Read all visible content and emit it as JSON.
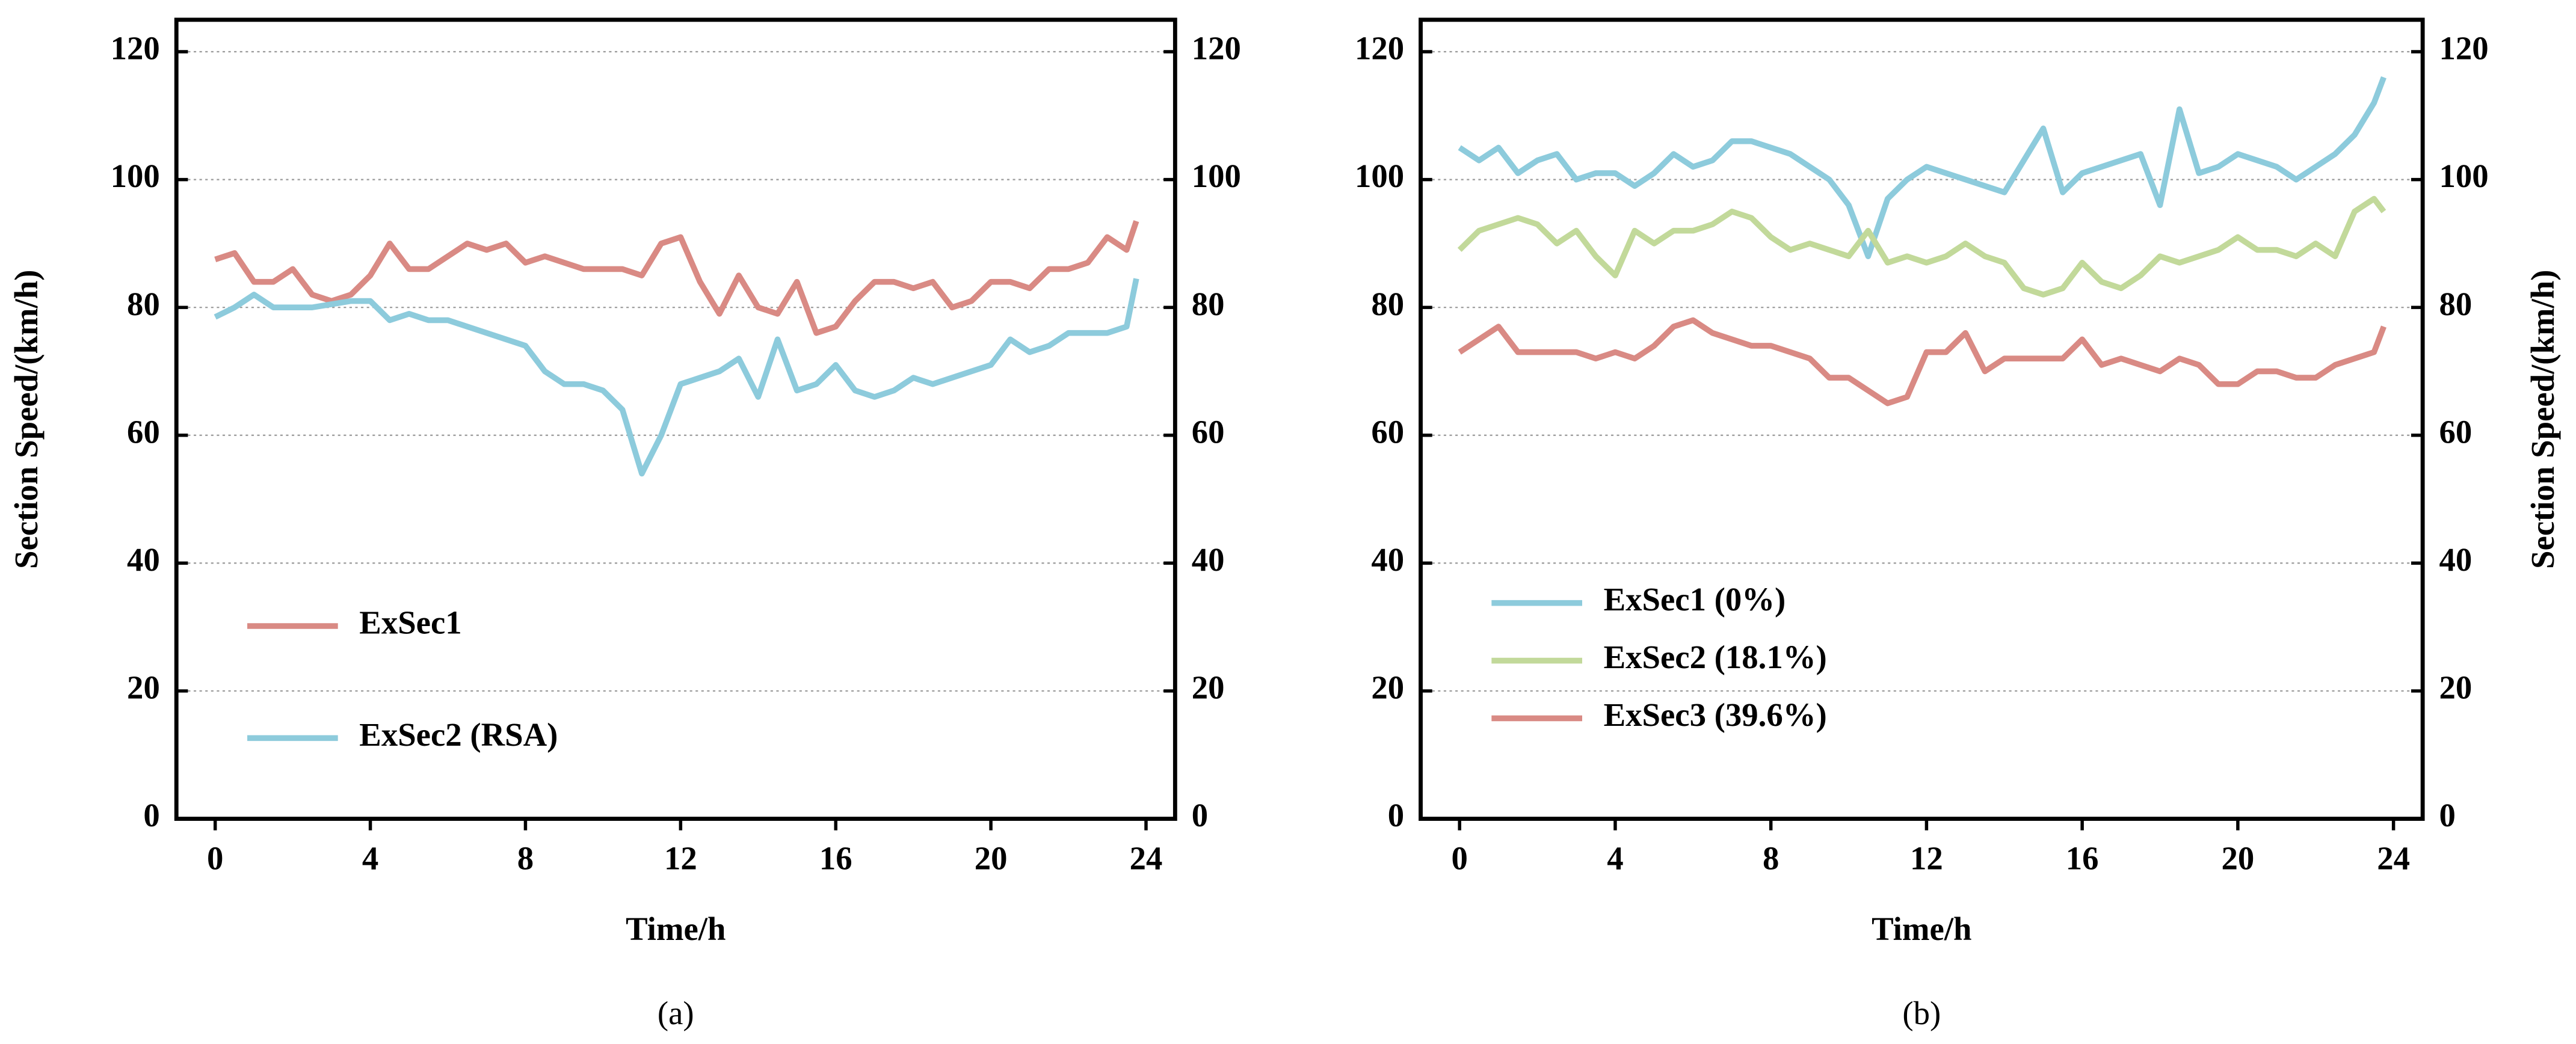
{
  "chart_data": [
    {
      "type": "line",
      "caption": "(a)",
      "xlabel": "Time/h",
      "ylabel": "Section Speed/(km/h)",
      "x": [
        0,
        0.5,
        1,
        1.5,
        2,
        2.5,
        3,
        3.5,
        4,
        4.5,
        5,
        5.5,
        6,
        6.5,
        7,
        7.5,
        8,
        8.5,
        9,
        9.5,
        10,
        10.5,
        11,
        11.5,
        12,
        12.5,
        13,
        13.5,
        14,
        14.5,
        15,
        15.5,
        16,
        16.5,
        17,
        17.5,
        18,
        18.5,
        19,
        19.5,
        20,
        20.5,
        21,
        21.5,
        22,
        22.5,
        23,
        23.5,
        23.75
      ],
      "series": [
        {
          "name": "ExSec1",
          "color": "#d98a84",
          "values": [
            87.5,
            88.5,
            84,
            84,
            86,
            82,
            81,
            82,
            85,
            90,
            86,
            86,
            88,
            90,
            89,
            90,
            87,
            88,
            87,
            86,
            86,
            86,
            85,
            90,
            91,
            84,
            79,
            85,
            80,
            79,
            84,
            76,
            77,
            81,
            84,
            84,
            83,
            84,
            80,
            81,
            84,
            84,
            83,
            86,
            86,
            87,
            91,
            89,
            93.5
          ]
        },
        {
          "name": "ExSec2 (RSA)",
          "color": "#8dcbdc",
          "values": [
            78.5,
            80,
            82,
            80,
            80,
            80,
            80.5,
            81,
            81,
            78,
            79,
            78,
            78,
            77,
            76,
            75,
            74,
            70,
            68,
            68,
            67,
            64,
            54,
            60,
            68,
            69,
            70,
            72,
            66,
            75,
            67,
            68,
            71,
            67,
            66,
            67,
            69,
            68,
            69,
            70,
            71,
            75,
            73,
            74,
            76,
            76,
            76,
            77,
            84.5
          ]
        }
      ],
      "xlim": [
        -1,
        24.75
      ],
      "xticks": [
        0,
        4,
        8,
        12,
        16,
        20,
        24
      ],
      "ylim": [
        0,
        125
      ],
      "yticks": [
        0,
        20,
        40,
        60,
        80,
        100,
        120
      ],
      "y2lim": [
        0,
        125
      ],
      "y2ticks": [
        0,
        20,
        40,
        60,
        80,
        100,
        120
      ],
      "grid": true,
      "legend": "lower left"
    },
    {
      "type": "line",
      "caption": "(b)",
      "xlabel": "Time/h",
      "y2label": "Section Speed/(km/h)",
      "x": [
        0,
        0.5,
        1,
        1.5,
        2,
        2.5,
        3,
        3.5,
        4,
        4.5,
        5,
        5.5,
        6,
        6.5,
        7,
        7.5,
        8,
        8.5,
        9,
        9.5,
        10,
        10.5,
        11,
        11.5,
        12,
        12.5,
        13,
        13.5,
        14,
        14.5,
        15,
        15.5,
        16,
        16.5,
        17,
        17.5,
        18,
        18.5,
        19,
        19.5,
        20,
        20.5,
        21,
        21.5,
        22,
        22.5,
        23,
        23.5,
        23.75
      ],
      "series": [
        {
          "name": "ExSec1 (0%)",
          "color": "#8dcbdc",
          "values": [
            105,
            103,
            105,
            101,
            103,
            104,
            100,
            101,
            101,
            99,
            101,
            104,
            102,
            103,
            106,
            106,
            105,
            104,
            102,
            100,
            96,
            88,
            97,
            100,
            102,
            101,
            100,
            99,
            98,
            103,
            108,
            98,
            101,
            102,
            103,
            104,
            96,
            111,
            101,
            102,
            104,
            103,
            102,
            100,
            102,
            104,
            107,
            112,
            116
          ]
        },
        {
          "name": "ExSec2 (18.1%)",
          "color": "#c2d99a",
          "values": [
            89,
            92,
            93,
            94,
            93,
            90,
            92,
            88,
            85,
            92,
            90,
            92,
            92,
            93,
            95,
            94,
            91,
            89,
            90,
            89,
            88,
            92,
            87,
            88,
            87,
            88,
            90,
            88,
            87,
            83,
            82,
            83,
            87,
            84,
            83,
            85,
            88,
            87,
            88,
            89,
            91,
            89,
            89,
            88,
            90,
            88,
            95,
            97,
            95
          ]
        },
        {
          "name": "ExSec3 (39.6%)",
          "color": "#d98a84",
          "values": [
            73,
            75,
            77,
            73,
            73,
            73,
            73,
            72,
            73,
            72,
            74,
            77,
            78,
            76,
            75,
            74,
            74,
            73,
            72,
            69,
            69,
            67,
            65,
            66,
            73,
            73,
            76,
            70,
            72,
            72,
            72,
            72,
            75,
            71,
            72,
            71,
            70,
            72,
            71,
            68,
            68,
            70,
            70,
            69,
            69,
            71,
            72,
            73,
            77
          ]
        }
      ],
      "xlim": [
        -1,
        24.75
      ],
      "xticks": [
        0,
        4,
        8,
        12,
        16,
        20,
        24
      ],
      "ylim": [
        0,
        125
      ],
      "yticks": [
        0,
        20,
        40,
        60,
        80,
        100,
        120
      ],
      "y2lim": [
        0,
        125
      ],
      "y2ticks": [
        0,
        20,
        40,
        60,
        80,
        100,
        120
      ],
      "grid": true,
      "legend": "lower left"
    }
  ]
}
